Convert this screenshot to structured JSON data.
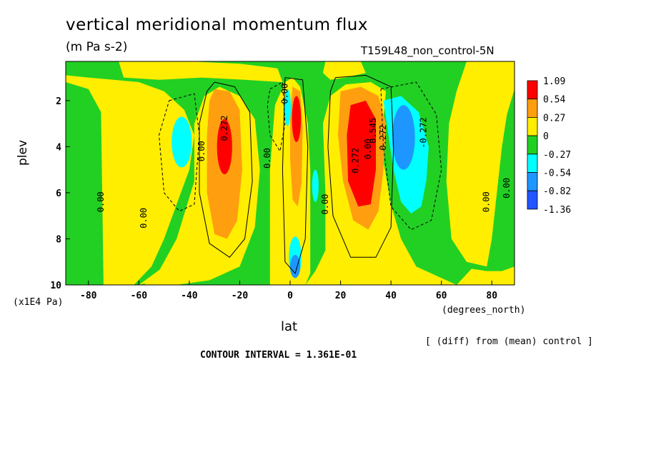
{
  "chart_data": {
    "type": "heatmap",
    "title": "vertical meridional momentum flux",
    "units": "(m Pa s-2)",
    "run_label": "T159L48_non_control-5N",
    "xlabel": "lat",
    "x_units": "(degrees_north)",
    "ylabel": "plev",
    "y_units": "(x1E4 Pa)",
    "footnote": "[ (diff) from (mean) control ]",
    "contour_interval_text": "CONTOUR INTERVAL = 1.361E-01",
    "xlim": [
      -89,
      89
    ],
    "ylim": [
      10,
      0.3
    ],
    "x_ticks": [
      -80,
      -60,
      -40,
      -20,
      0,
      20,
      40,
      60,
      80
    ],
    "x_tick_labels": [
      "-80",
      "-60",
      "-40",
      "-20",
      "0",
      "20",
      "40",
      "60",
      "80"
    ],
    "y_ticks": [
      2,
      4,
      6,
      8,
      10
    ],
    "y_tick_labels": [
      "2",
      "4",
      "6",
      "8",
      "10"
    ],
    "legend": {
      "levels": [
        "1.09",
        "0.54",
        "0.27",
        "0",
        "-0.27",
        "-0.54",
        "-0.82",
        "-1.36"
      ],
      "colors": [
        "#ff0000",
        "#ff9f0f",
        "#ffee00",
        "#22d023",
        "#00ffff",
        "#1e96ff",
        "#2255ff"
      ]
    },
    "colors": {
      "positive_high": "#ff0000",
      "positive_mid": "#ff9f0f",
      "positive_low": "#ffee00",
      "near_zero": "#22d023",
      "negative_low": "#00ffff",
      "negative_mid": "#1e96ff",
      "negative_high": "#2255ff"
    },
    "features": [
      {
        "kind": "max",
        "lat": -26,
        "plev": 4.0,
        "value": 0.8
      },
      {
        "kind": "min",
        "lat": -43,
        "plev": 3.8,
        "value": -0.4
      },
      {
        "kind": "max",
        "lat": 3,
        "plev": 2.8,
        "value": 1.0
      },
      {
        "kind": "min",
        "lat": -1,
        "plev": 2.5,
        "value": -0.3
      },
      {
        "kind": "min",
        "lat": 10,
        "plev": 6.0,
        "value": -0.3
      },
      {
        "kind": "min",
        "lat": 0,
        "plev": 9.0,
        "value": -0.9
      },
      {
        "kind": "max",
        "lat": 30,
        "plev": 4.5,
        "value": 1.09
      },
      {
        "kind": "min",
        "lat": 47,
        "plev": 4.0,
        "value": -0.8
      }
    ],
    "contour_labels": [
      "0.272",
      "0.00",
      "0.00",
      "0.00",
      "0.00",
      "0.00",
      "0.00",
      "0.272",
      "0.00",
      "0.545",
      "0.272",
      "-0.272",
      "0.00",
      "0.00"
    ]
  }
}
